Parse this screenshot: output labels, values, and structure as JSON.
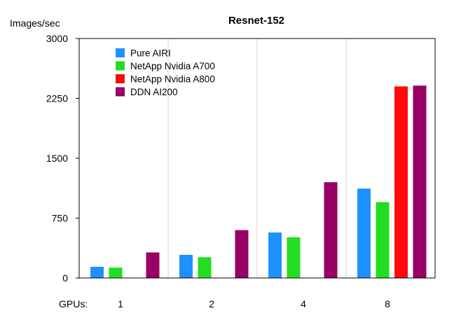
{
  "chart_data": {
    "type": "bar",
    "title": "Resnet-152",
    "ylabel": "Images/sec",
    "xlabel": "GPUs:",
    "ylim": [
      0,
      3000
    ],
    "yticks": [
      0,
      750,
      1500,
      2250,
      3000
    ],
    "ytick_labels": [
      "0",
      "750",
      "1500",
      "2250",
      "3000"
    ],
    "categories": [
      "1",
      "2",
      "4",
      "8"
    ],
    "grid": "vertical",
    "legend_position": "top-left",
    "series": [
      {
        "name": "Pure AIRI",
        "color": "#1e90ff",
        "values": [
          140,
          290,
          570,
          1120
        ]
      },
      {
        "name": "NetApp Nvidia A700",
        "color": "#22dd22",
        "values": [
          130,
          260,
          510,
          950
        ]
      },
      {
        "name": "NetApp Nvidia A800",
        "color": "#ff0a0a",
        "values": [
          null,
          null,
          null,
          2400
        ]
      },
      {
        "name": "DDN AI200",
        "color": "#990066",
        "values": [
          320,
          600,
          1200,
          2410
        ]
      }
    ]
  }
}
